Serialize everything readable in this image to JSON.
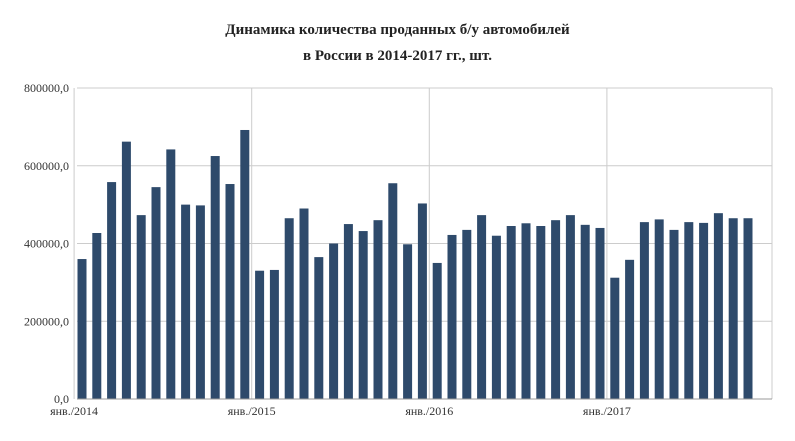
{
  "title_line1": "Динамика количества проданных б/у автомобилей",
  "title_line2": "в России в 2014-2017 гг., шт.",
  "chart_data": {
    "type": "bar",
    "title": "Динамика количества проданных б/у автомобилей в России в 2014-2017 гг., шт.",
    "xlabel": "",
    "ylabel": "",
    "ylim": [
      0,
      800000
    ],
    "y_ticks": [
      0,
      200000,
      400000,
      600000,
      800000
    ],
    "y_tick_labels": [
      "0,0",
      "200000,0",
      "400000,0",
      "600000,0",
      "800000,0"
    ],
    "x_tick_labels": [
      {
        "index": 0,
        "label": "янв./2014"
      },
      {
        "index": 12,
        "label": "янв./2015"
      },
      {
        "index": 24,
        "label": "янв./2016"
      },
      {
        "index": 36,
        "label": "янв./2017"
      }
    ],
    "grid": true,
    "bar_color": "#2e4a6b",
    "grid_color": "#cccccc",
    "values": [
      360000,
      427000,
      558000,
      662000,
      473000,
      545000,
      642000,
      500000,
      498000,
      625000,
      553000,
      692000,
      330000,
      332000,
      465000,
      490000,
      365000,
      400000,
      450000,
      432000,
      460000,
      555000,
      398000,
      503000,
      350000,
      422000,
      435000,
      473000,
      420000,
      445000,
      452000,
      445000,
      460000,
      473000,
      448000,
      440000,
      312000,
      358000,
      455000,
      462000,
      435000,
      455000,
      453000,
      478000,
      465000,
      465000
    ]
  }
}
